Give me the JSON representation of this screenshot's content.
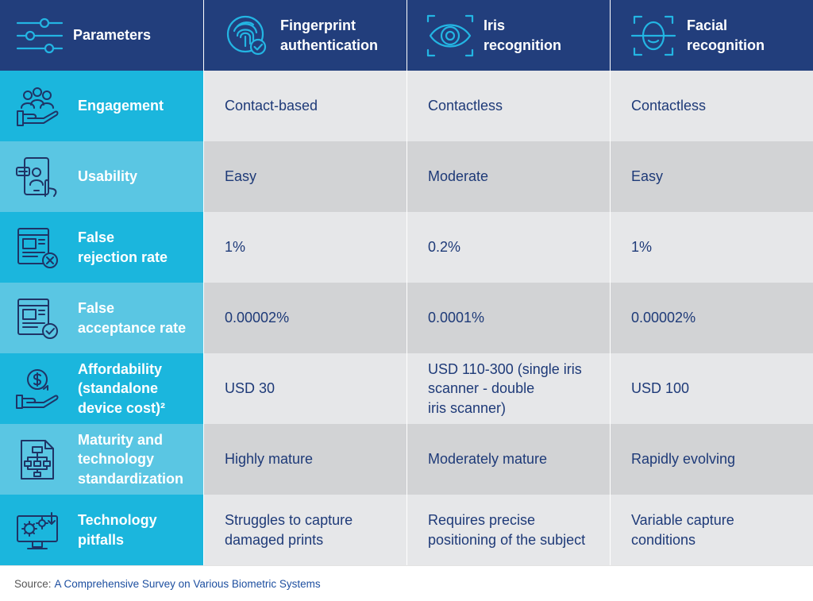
{
  "header": {
    "parameters_label": "Parameters",
    "columns": [
      {
        "label": "Fingerprint\nauthentication",
        "icon": "fingerprint-icon"
      },
      {
        "label": "Iris\nrecognition",
        "icon": "eye-icon"
      },
      {
        "label": "Facial\nrecognition",
        "icon": "face-scan-icon"
      }
    ],
    "parameters_icon": "sliders-icon"
  },
  "rows": [
    {
      "label": "Engagement",
      "icon": "group-hand-icon",
      "values": [
        "Contact-based",
        "Contactless",
        "Contactless"
      ]
    },
    {
      "label": "Usability",
      "icon": "tablet-touch-icon",
      "values": [
        "Easy",
        "Moderate",
        "Easy"
      ]
    },
    {
      "label": "False\nrejection rate",
      "icon": "document-reject-icon",
      "values": [
        "1%",
        "0.2%",
        "1%"
      ]
    },
    {
      "label": "False\nacceptance rate",
      "icon": "document-accept-icon",
      "values": [
        "0.00002%",
        "0.0001%",
        "0.00002%"
      ]
    },
    {
      "label": "Affordability\n(standalone\ndevice cost)²",
      "icon": "dollar-hand-icon",
      "values": [
        "USD 30",
        "USD 110-300 (single iris\nscanner - double\niris scanner)",
        "USD 100"
      ]
    },
    {
      "label": "Maturity and\ntechnology\nstandardization",
      "icon": "flowchart-document-icon",
      "values": [
        "Highly mature",
        "Moderately mature",
        "Rapidly evolving"
      ]
    },
    {
      "label": "Technology\npitfalls",
      "icon": "monitor-gears-icon",
      "values": [
        "Struggles to capture\ndamaged prints",
        "Requires precise\npositioning of the subject",
        "Variable capture\nconditions"
      ]
    }
  ],
  "footer": {
    "source_label": "Source:",
    "source_link": "A Comprehensive Survey on Various Biometric Systems"
  },
  "colors": {
    "header_bg": "#223e7c",
    "param_cyan_dark": "#1bb6dd",
    "param_cyan_light": "#5ac6e3",
    "cell_light": "#e6e7e9",
    "cell_dark": "#d2d3d5",
    "text_navy": "#1e3a78",
    "link_blue": "#1d4fa0"
  }
}
